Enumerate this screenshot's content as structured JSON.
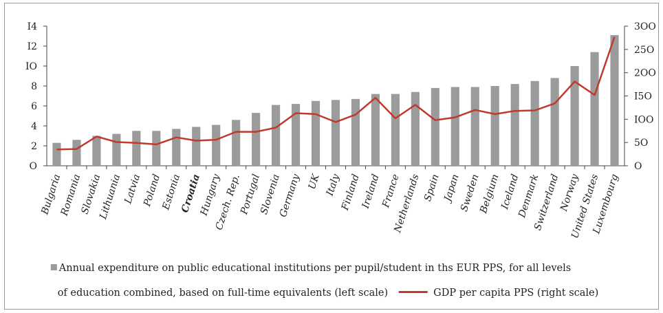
{
  "chart_data": {
    "type": "bar",
    "categories": [
      "Bulgaria",
      "Romania",
      "Slovakia",
      "Lithuania",
      "Latvia",
      "Poland",
      "Estonia",
      "Croatia",
      "Hungary",
      "Czech. Rep.",
      "Portugal",
      "Slovenia",
      "Germany",
      "UK",
      "Italy",
      "Finland",
      "Ireland",
      "France",
      "Netherlands",
      "Spain",
      "Japan",
      "Sweden",
      "Belgium",
      "Iceland",
      "Denmark",
      "Switzerland",
      "Norway",
      "United States",
      "Luxembourg"
    ],
    "highlighted_category": "Croatia",
    "series": [
      {
        "name": "Annual expenditure on public educational institutions per pupil/student in ths EUR PPS, for all levels of education combined, based on full-time equivalents (left scale)",
        "type": "bar",
        "axis": "left",
        "color": "#9b9b9b",
        "values": [
          2.3,
          2.6,
          3.0,
          3.2,
          3.5,
          3.5,
          3.7,
          3.9,
          4.1,
          4.6,
          5.3,
          6.1,
          6.2,
          6.5,
          6.6,
          6.7,
          7.2,
          7.2,
          7.4,
          7.8,
          7.9,
          7.9,
          8.0,
          8.2,
          8.5,
          8.8,
          10.0,
          11.4,
          13.1
        ]
      },
      {
        "name": "GDP per capita PPS (right scale)",
        "type": "line",
        "axis": "right",
        "color": "#c0392b",
        "values": [
          35,
          36,
          63,
          51,
          49,
          46,
          61,
          54,
          56,
          73,
          73,
          82,
          113,
          111,
          94,
          110,
          146,
          102,
          131,
          98,
          104,
          120,
          111,
          118,
          119,
          134,
          181,
          152,
          277
        ]
      }
    ],
    "left_axis": {
      "ylim": [
        0,
        14
      ],
      "ticks": [
        "O",
        "2",
        "4",
        "6",
        "8",
        "IO",
        "I2",
        "I4"
      ]
    },
    "right_axis": {
      "ylim": [
        0,
        300
      ],
      "ticks": [
        "O",
        "5O",
        "IOO",
        "I5O",
        "2OO",
        "25O",
        "3OO"
      ]
    },
    "grid": false,
    "legend_position": "bottom"
  },
  "legend": {
    "bar_label": "Annual expenditure on public educational institutions per pupil/student in ths EUR PPS, for all levels",
    "bar_label_cont": "of education combined, based on full-time equivalents (left scale)",
    "line_label": "GDP per capita PPS (right scale)"
  }
}
